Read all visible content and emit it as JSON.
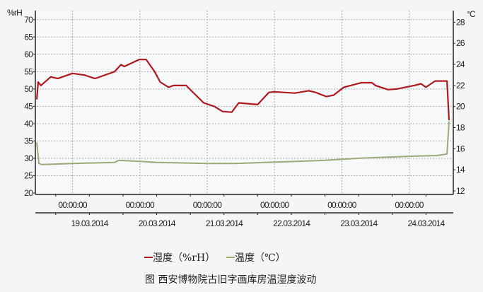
{
  "chart_data": {
    "type": "line",
    "left_axis": {
      "unit": "%rH",
      "ticks": [
        20,
        25,
        30,
        35,
        40,
        45,
        50,
        55,
        60,
        65,
        70
      ],
      "ylim": [
        20,
        72.6
      ]
    },
    "right_axis": {
      "unit": "°C",
      "ticks": [
        12,
        14,
        16,
        18,
        20,
        22,
        24,
        26,
        28
      ],
      "ylim": [
        12,
        29.1
      ]
    },
    "x_axis": {
      "range": [
        "2014-03-18T11:15",
        "2014-03-24T15:30"
      ],
      "time_labels": [
        "00:00:00",
        "00:00:00",
        "00:00:00",
        "00:00:00",
        "00:00:00",
        "00:00:00"
      ],
      "date_labels": [
        "19.03.2014",
        "20.03.2014",
        "21.03.2014",
        "22.03.2014",
        "23.03.2014",
        "24.03.2014"
      ],
      "major_ticks": [
        "2014-03-19T00:00",
        "2014-03-20T00:00",
        "2014-03-21T00:00",
        "2014-03-22T00:00",
        "2014-03-23T00:00",
        "2014-03-24T00:00"
      ]
    },
    "grid": true,
    "series": [
      {
        "name": "湿度（%rH）",
        "axis": "left",
        "color": "#b0191c",
        "points": [
          [
            "2014-03-18T11:15",
            47
          ],
          [
            "2014-03-18T11:45",
            52
          ],
          [
            "2014-03-18T12:45",
            51
          ],
          [
            "2014-03-18T16:15",
            53.5
          ],
          [
            "2014-03-18T18:45",
            53
          ],
          [
            "2014-03-19T00:00",
            54.5
          ],
          [
            "2014-03-19T04:15",
            54
          ],
          [
            "2014-03-19T08:00",
            53
          ],
          [
            "2014-03-19T15:00",
            55
          ],
          [
            "2014-03-19T17:15",
            57
          ],
          [
            "2014-03-19T18:30",
            56.5
          ],
          [
            "2014-03-19T23:45",
            58.5
          ],
          [
            "2014-03-20T02:15",
            58.5
          ],
          [
            "2014-03-20T05:15",
            55
          ],
          [
            "2014-03-20T07:15",
            52
          ],
          [
            "2014-03-20T10:15",
            50.5
          ],
          [
            "2014-03-20T12:00",
            51
          ],
          [
            "2014-03-20T16:30",
            51
          ],
          [
            "2014-03-20T17:45",
            50
          ],
          [
            "2014-03-20T22:45",
            46
          ],
          [
            "2014-03-21T02:30",
            45
          ],
          [
            "2014-03-21T05:30",
            43.5
          ],
          [
            "2014-03-21T08:45",
            43.3
          ],
          [
            "2014-03-21T11:15",
            46
          ],
          [
            "2014-03-21T18:00",
            45.5
          ],
          [
            "2014-03-21T22:00",
            49
          ],
          [
            "2014-03-21T23:45",
            49.2
          ],
          [
            "2014-03-22T07:15",
            48.8
          ],
          [
            "2014-03-22T12:15",
            49.5
          ],
          [
            "2014-03-22T14:45",
            49
          ],
          [
            "2014-03-22T18:30",
            47.8
          ],
          [
            "2014-03-22T21:00",
            48.2
          ],
          [
            "2014-03-23T00:45",
            50.5
          ],
          [
            "2014-03-23T07:00",
            51.8
          ],
          [
            "2014-03-23T10:45",
            51.8
          ],
          [
            "2014-03-23T12:00",
            51
          ],
          [
            "2014-03-23T16:30",
            49.8
          ],
          [
            "2014-03-23T19:30",
            50
          ],
          [
            "2014-03-24T01:45",
            51
          ],
          [
            "2014-03-24T04:15",
            51.5
          ],
          [
            "2014-03-24T06:00",
            50.5
          ],
          [
            "2014-03-24T09:15",
            52.3
          ],
          [
            "2014-03-24T13:30",
            52.3
          ],
          [
            "2014-03-24T14:15",
            41
          ]
        ]
      },
      {
        "name": "温度（℃）",
        "axis": "right",
        "color": "#9aab78",
        "points": [
          [
            "2014-03-18T11:15",
            16.6
          ],
          [
            "2014-03-18T12:00",
            14.6
          ],
          [
            "2014-03-18T13:00",
            14.5
          ],
          [
            "2014-03-19T00:00",
            14.6
          ],
          [
            "2014-03-19T15:00",
            14.7
          ],
          [
            "2014-03-19T16:30",
            14.9
          ],
          [
            "2014-03-20T00:00",
            14.8
          ],
          [
            "2014-03-20T06:00",
            14.7
          ],
          [
            "2014-03-21T00:00",
            14.6
          ],
          [
            "2014-03-21T10:00",
            14.6
          ],
          [
            "2014-03-22T08:00",
            14.8
          ],
          [
            "2014-03-22T18:00",
            14.9
          ],
          [
            "2014-03-23T06:30",
            15.1
          ],
          [
            "2014-03-23T16:30",
            15.2
          ],
          [
            "2014-03-24T02:30",
            15.3
          ],
          [
            "2014-03-24T10:00",
            15.35
          ],
          [
            "2014-03-24T13:30",
            15.5
          ],
          [
            "2014-03-24T14:15",
            18.6
          ]
        ]
      }
    ],
    "legend": {
      "placement": "bottom-center",
      "items": [
        "湿度（%rH）",
        "温度（℃）"
      ]
    }
  },
  "caption": "图  西安博物院古旧字画库房温湿度波动"
}
